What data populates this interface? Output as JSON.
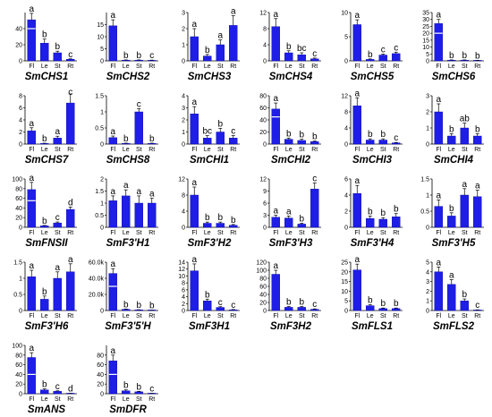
{
  "figure": {
    "tick_color": "#000000",
    "bar_color": "#1e1ee6",
    "bar_edge": "#0000aa",
    "band_color": "#ffffff"
  },
  "chart_data": [
    {
      "type": "bar",
      "title": "SmCHS1",
      "categories": [
        "Fl",
        "Le",
        "St",
        "Rt"
      ],
      "values": [
        51,
        22,
        10,
        2
      ],
      "errors": [
        8,
        5,
        2,
        0.5
      ],
      "letters": [
        "a",
        "b",
        "b",
        "c"
      ],
      "ylim": [
        0,
        60
      ],
      "yticks": [
        0,
        20,
        40
      ],
      "band": 40
    },
    {
      "type": "bar",
      "title": "SmCHS2",
      "categories": [
        "Fl",
        "Le",
        "St",
        "Rt"
      ],
      "values": [
        14.5,
        0.3,
        0.3,
        0.2
      ],
      "errors": [
        2.5,
        0.1,
        0.1,
        0.1
      ],
      "letters": [
        "a",
        "b",
        "b",
        "c"
      ],
      "ylim": [
        0,
        20
      ],
      "yticks": [
        0,
        5,
        10,
        15
      ],
      "band": null
    },
    {
      "type": "bar",
      "title": "SmCHS3",
      "categories": [
        "Fl",
        "Le",
        "St",
        "Rt"
      ],
      "values": [
        1.5,
        0.3,
        1.0,
        2.2
      ],
      "errors": [
        0.5,
        0.1,
        0.3,
        0.6
      ],
      "letters": [
        "a",
        "b",
        "a",
        "a"
      ],
      "ylim": [
        0,
        3
      ],
      "yticks": [
        0,
        1,
        2,
        3
      ],
      "band": null
    },
    {
      "type": "bar",
      "title": "SmCHS4",
      "categories": [
        "Fl",
        "Le",
        "St",
        "Rt"
      ],
      "values": [
        8.5,
        2,
        1.5,
        0.5
      ],
      "errors": [
        2,
        0.5,
        0.5,
        0.2
      ],
      "letters": [
        "a",
        "b",
        "bc",
        "c"
      ],
      "ylim": [
        0,
        12
      ],
      "yticks": [
        0,
        4,
        8,
        12
      ],
      "band": null
    },
    {
      "type": "bar",
      "title": "SmCHS5",
      "categories": [
        "Fl",
        "Le",
        "St",
        "Rt"
      ],
      "values": [
        7.5,
        0.3,
        1.2,
        1.5
      ],
      "errors": [
        1,
        0.1,
        0.2,
        0.3
      ],
      "letters": [
        "a",
        "b",
        "c",
        "c"
      ],
      "ylim": [
        0,
        10
      ],
      "yticks": [
        0,
        5,
        10
      ],
      "band": null
    },
    {
      "type": "bar",
      "title": "SmCHS6",
      "categories": [
        "Fl",
        "Le",
        "St",
        "Rt"
      ],
      "values": [
        27,
        0.5,
        0.5,
        0.3
      ],
      "errors": [
        3,
        0.2,
        0.2,
        0.1
      ],
      "letters": [
        "a",
        "b",
        "b",
        "b"
      ],
      "ylim": [
        0,
        35
      ],
      "yticks": [
        0,
        5,
        10,
        15,
        20,
        25,
        30,
        35
      ],
      "band": 20
    },
    {
      "type": "bar",
      "title": "SmCHS7",
      "categories": [
        "Fl",
        "Le",
        "St",
        "Rt"
      ],
      "values": [
        2.2,
        0.1,
        1.0,
        6.8
      ],
      "errors": [
        0.5,
        0.05,
        0.3,
        1.5
      ],
      "letters": [
        "a",
        "b",
        "a",
        "c"
      ],
      "ylim": [
        0,
        8
      ],
      "yticks": [
        0,
        2,
        4,
        6,
        8
      ],
      "band": null
    },
    {
      "type": "bar",
      "title": "SmCHS8",
      "categories": [
        "Fl",
        "Le",
        "St",
        "Rt"
      ],
      "values": [
        0.2,
        0.02,
        1.0,
        0.02
      ],
      "errors": [
        0.05,
        0.01,
        0.1,
        0.01
      ],
      "letters": [
        "a",
        "b",
        "c",
        "b"
      ],
      "ylim": [
        0,
        1.5
      ],
      "yticks": [
        0,
        0.5,
        1.0,
        1.5
      ],
      "band": null
    },
    {
      "type": "bar",
      "title": "SmCHI1",
      "categories": [
        "Fl",
        "Le",
        "St",
        "Rt"
      ],
      "values": [
        2.5,
        0.5,
        1.0,
        0.5
      ],
      "errors": [
        0.6,
        0.2,
        0.3,
        0.2
      ],
      "letters": [
        "a",
        "bc",
        "b",
        "c"
      ],
      "ylim": [
        0,
        4
      ],
      "yticks": [
        0,
        1,
        2,
        3,
        4
      ],
      "band": null
    },
    {
      "type": "bar",
      "title": "SmCHI2",
      "categories": [
        "Fl",
        "Le",
        "St",
        "Rt"
      ],
      "values": [
        58,
        8,
        6,
        4
      ],
      "errors": [
        10,
        2,
        2,
        1
      ],
      "letters": [
        "a",
        "b",
        "b",
        "b"
      ],
      "ylim": [
        0,
        80
      ],
      "yticks": [
        0,
        20,
        40,
        60,
        80
      ],
      "band": 45
    },
    {
      "type": "bar",
      "title": "SmCHI3",
      "categories": [
        "Fl",
        "Le",
        "St",
        "Rt"
      ],
      "values": [
        9.5,
        1,
        1,
        0.3
      ],
      "errors": [
        2,
        0.3,
        0.3,
        0.1
      ],
      "letters": [
        "a",
        "b",
        "b",
        "c"
      ],
      "ylim": [
        0,
        12
      ],
      "yticks": [
        0,
        4,
        8,
        12
      ],
      "band": null
    },
    {
      "type": "bar",
      "title": "SmCHI4",
      "categories": [
        "Fl",
        "Le",
        "St",
        "Rt"
      ],
      "values": [
        2.0,
        0.5,
        1.0,
        0.5
      ],
      "errors": [
        0.5,
        0.15,
        0.3,
        0.15
      ],
      "letters": [
        "a",
        "b",
        "ab",
        "b"
      ],
      "ylim": [
        0,
        3
      ],
      "yticks": [
        0,
        1,
        2,
        3
      ],
      "band": null
    },
    {
      "type": "bar",
      "title": "SmFNSII",
      "categories": [
        "Fl",
        "Le",
        "St",
        "Rt"
      ],
      "values": [
        78,
        3,
        9,
        37
      ],
      "errors": [
        15,
        1,
        2,
        5
      ],
      "letters": [
        "a",
        "b",
        "c",
        "d"
      ],
      "ylim": [
        0,
        100
      ],
      "yticks": [
        0,
        20,
        40,
        60,
        80,
        100
      ],
      "band": 55
    },
    {
      "type": "bar",
      "title": "SmF3'H1",
      "categories": [
        "Fl",
        "Le",
        "St",
        "Rt"
      ],
      "values": [
        1.1,
        1.3,
        1.0,
        1.0
      ],
      "errors": [
        0.2,
        0.25,
        0.3,
        0.2
      ],
      "letters": [
        "a",
        "a",
        "a",
        "a"
      ],
      "ylim": [
        0,
        2.0
      ],
      "yticks": [
        0,
        0.5,
        1.0,
        1.5,
        2.0
      ],
      "band": null
    },
    {
      "type": "bar",
      "title": "SmF3'H2",
      "categories": [
        "Fl",
        "Le",
        "St",
        "Rt"
      ],
      "values": [
        8,
        1,
        1,
        0.5
      ],
      "errors": [
        2,
        0.3,
        0.3,
        0.2
      ],
      "letters": [
        "a",
        "b",
        "b",
        "b"
      ],
      "ylim": [
        0,
        12
      ],
      "yticks": [
        0,
        4,
        8,
        12
      ],
      "band": null
    },
    {
      "type": "bar",
      "title": "SmF3'H3",
      "categories": [
        "Fl",
        "Le",
        "St",
        "Rt"
      ],
      "values": [
        2.5,
        2.3,
        0.8,
        9.5
      ],
      "errors": [
        0.5,
        0.5,
        0.2,
        1.5
      ],
      "letters": [
        "a",
        "a",
        "b",
        "c"
      ],
      "ylim": [
        0,
        12
      ],
      "yticks": [
        0,
        3,
        6,
        9,
        12
      ],
      "band": null
    },
    {
      "type": "bar",
      "title": "SmF3'H4",
      "categories": [
        "Fl",
        "Le",
        "St",
        "Rt"
      ],
      "values": [
        4.2,
        1.1,
        1.0,
        1.3
      ],
      "errors": [
        1,
        0.3,
        0.2,
        0.4
      ],
      "letters": [
        "a",
        "b",
        "b",
        "b"
      ],
      "ylim": [
        0,
        6
      ],
      "yticks": [
        0,
        2,
        4,
        6
      ],
      "band": null
    },
    {
      "type": "bar",
      "title": "SmF3'H5",
      "categories": [
        "Fl",
        "Le",
        "St",
        "Rt"
      ],
      "values": [
        0.65,
        0.35,
        1.0,
        0.95
      ],
      "errors": [
        0.2,
        0.1,
        0.2,
        0.2
      ],
      "letters": [
        "a",
        "b",
        "a",
        "a"
      ],
      "ylim": [
        0,
        1.5
      ],
      "yticks": [
        0,
        0.5,
        1.0,
        1.5
      ],
      "band": null
    },
    {
      "type": "bar",
      "title": "SmF3'H6",
      "categories": [
        "Fl",
        "Le",
        "St",
        "Rt"
      ],
      "values": [
        1.05,
        0.35,
        1.0,
        1.2
      ],
      "errors": [
        0.2,
        0.1,
        0.2,
        0.25
      ],
      "letters": [
        "a",
        "b",
        "a",
        "a"
      ],
      "ylim": [
        0,
        1.5
      ],
      "yticks": [
        0,
        0.5,
        1.0,
        1.5
      ],
      "band": null
    },
    {
      "type": "bar",
      "title": "SmF3'5'H",
      "categories": [
        "Fl",
        "Le",
        "St",
        "Rt"
      ],
      "values": [
        46000,
        1500,
        800,
        300
      ],
      "errors": [
        6000,
        400,
        200,
        100
      ],
      "letters": [
        "a",
        "b",
        "b",
        "b"
      ],
      "ylim": [
        0,
        60000
      ],
      "yticks": [
        0,
        20000,
        40000,
        60000
      ],
      "tick_labels": [
        "0",
        "20.0k",
        "40.0k",
        "60.0k"
      ],
      "band": 30000
    },
    {
      "type": "bar",
      "title": "SmF3H1",
      "categories": [
        "Fl",
        "Le",
        "St",
        "Rt"
      ],
      "values": [
        11.5,
        2.8,
        0.9,
        0.2
      ],
      "errors": [
        2,
        0.5,
        0.2,
        0.1
      ],
      "letters": [
        "a",
        "b",
        "c",
        "c"
      ],
      "ylim": [
        0,
        14
      ],
      "yticks": [
        0,
        2,
        4,
        6,
        8,
        10,
        12,
        14
      ],
      "band": null
    },
    {
      "type": "bar",
      "title": "SmF3H2",
      "categories": [
        "Fl",
        "Le",
        "St",
        "Rt"
      ],
      "values": [
        90,
        8,
        8,
        3
      ],
      "errors": [
        10,
        2,
        2,
        1
      ],
      "letters": [
        "a",
        "b",
        "b",
        "c"
      ],
      "ylim": [
        0,
        120
      ],
      "yticks": [
        0,
        20,
        40,
        60,
        80,
        100,
        120
      ],
      "band": null
    },
    {
      "type": "bar",
      "title": "SmFLS1",
      "categories": [
        "Fl",
        "Le",
        "St",
        "Rt"
      ],
      "values": [
        21,
        2.5,
        1,
        1
      ],
      "errors": [
        3,
        0.5,
        0.3,
        0.3
      ],
      "letters": [
        "a",
        "b",
        "b",
        "b"
      ],
      "ylim": [
        0,
        25
      ],
      "yticks": [
        0,
        5,
        10,
        15,
        20,
        25
      ],
      "band": null
    },
    {
      "type": "bar",
      "title": "SmFLS2",
      "categories": [
        "Fl",
        "Le",
        "St",
        "Rt"
      ],
      "values": [
        4,
        2.7,
        1,
        0.05
      ],
      "errors": [
        0.5,
        0.5,
        0.2,
        0.02
      ],
      "letters": [
        "a",
        "a",
        "b",
        "c"
      ],
      "ylim": [
        0,
        5
      ],
      "yticks": [
        0,
        1,
        2,
        3,
        4,
        5
      ],
      "band": null
    },
    {
      "type": "bar",
      "title": "SmANS",
      "categories": [
        "Fl",
        "Le",
        "St",
        "Rt"
      ],
      "values": [
        75,
        8,
        5,
        0.5
      ],
      "errors": [
        10,
        2,
        1,
        0.2
      ],
      "letters": [
        "a",
        "b",
        "c",
        "d"
      ],
      "ylim": [
        0,
        100
      ],
      "yticks": [
        0,
        20,
        40,
        60,
        80,
        100
      ],
      "band": 40
    },
    {
      "type": "bar",
      "title": "SmDFR",
      "categories": [
        "Fl",
        "Le",
        "St",
        "Rt"
      ],
      "values": [
        68,
        6,
        4,
        0.5
      ],
      "errors": [
        12,
        2,
        1,
        0.2
      ],
      "letters": [
        "a",
        "b",
        "b",
        "c"
      ],
      "ylim": [
        0,
        100
      ],
      "yticks": [
        0,
        20,
        40,
        60,
        80
      ],
      "band": 40
    }
  ]
}
